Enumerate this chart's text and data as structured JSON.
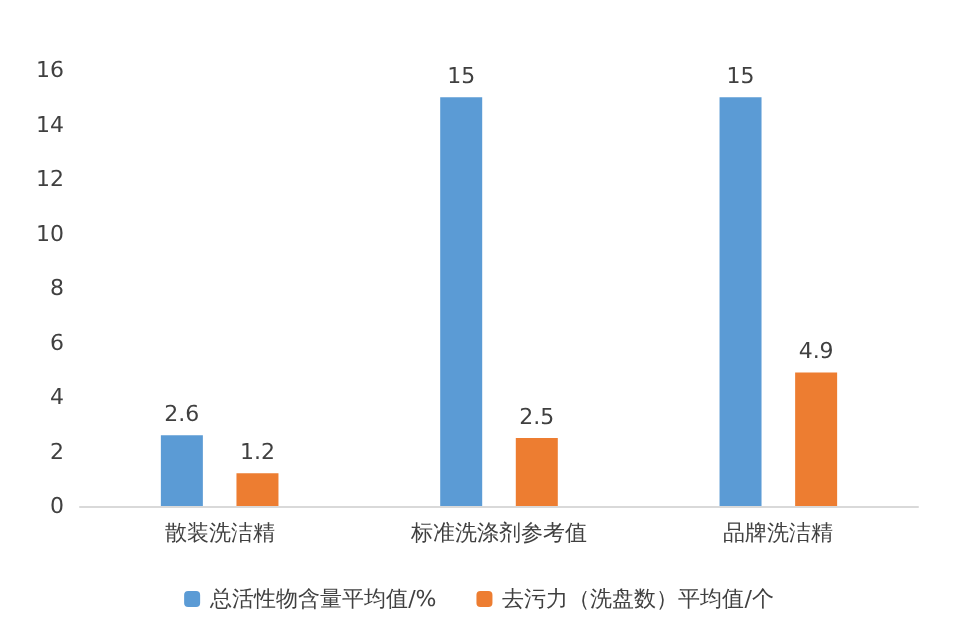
{
  "chart_data": {
    "type": "bar",
    "categories": [
      "散装洗洁精",
      "标准洗涤剂参考值",
      "品牌洗洁精"
    ],
    "series": [
      {
        "name": "总活性物含量平均值/%",
        "color": "#5b9bd5",
        "values": [
          2.6,
          15,
          15
        ]
      },
      {
        "name": "去污力（洗盘数）平均值/个",
        "color": "#ed7d31",
        "values": [
          1.2,
          2.5,
          4.9
        ]
      }
    ],
    "ylim": [
      0,
      16
    ],
    "yticks": [
      0,
      2,
      4,
      6,
      8,
      10,
      12,
      14,
      16
    ],
    "grid": false,
    "legend": "bottom",
    "data_labels": true
  }
}
